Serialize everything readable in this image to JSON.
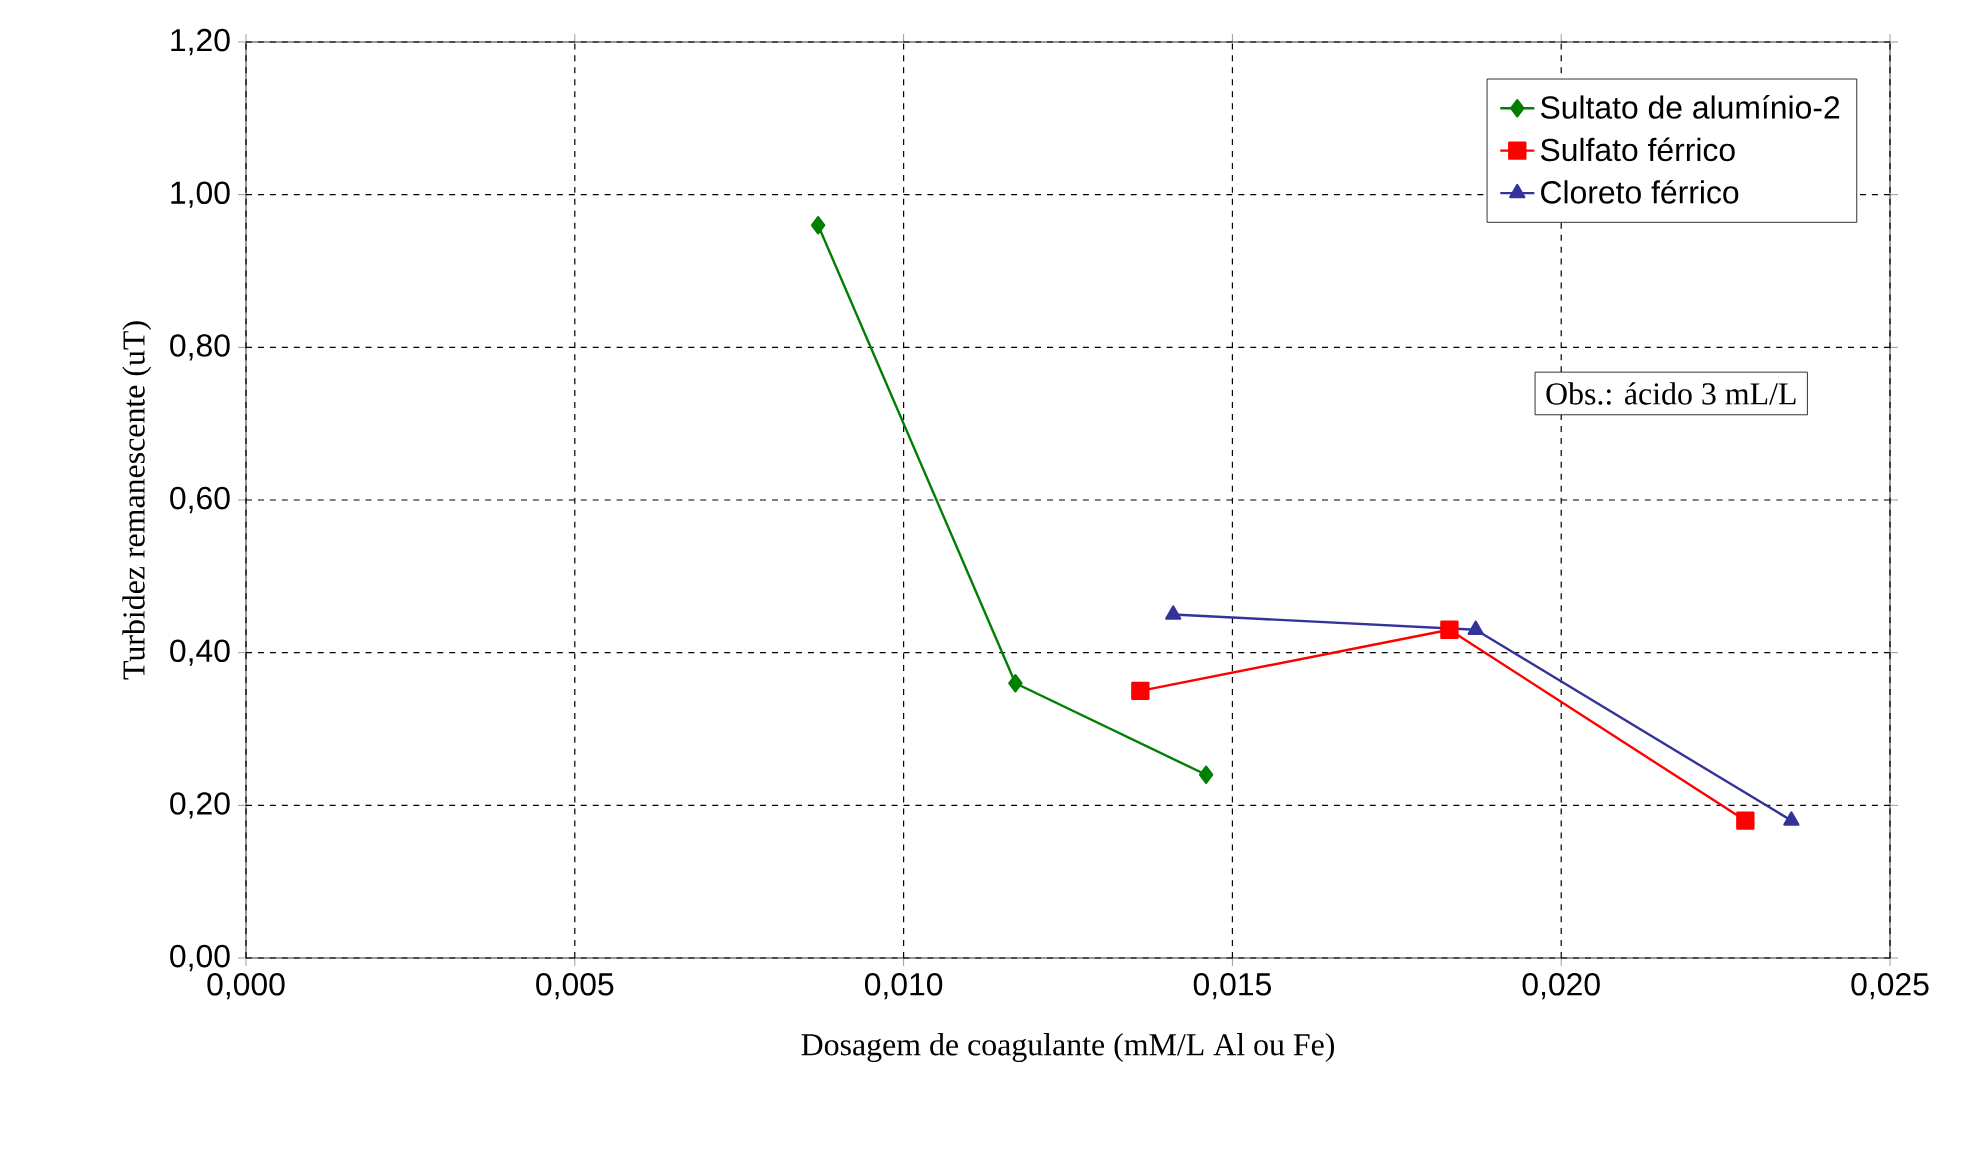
{
  "chart_data": {
    "type": "line",
    "xlabel": "Dosagem de coagulante (mM/L Al ou Fe)",
    "ylabel": "Turbidez remanescente (uT)",
    "xlim": [
      0,
      0.025
    ],
    "xticks": [
      {
        "value": 0,
        "label": "0,000"
      },
      {
        "value": 0.005,
        "label": "0,005"
      },
      {
        "value": 0.01,
        "label": "0,010"
      },
      {
        "value": 0.015,
        "label": "0,015"
      },
      {
        "value": 0.02,
        "label": "0,020"
      },
      {
        "value": 0.025,
        "label": "0,025"
      }
    ],
    "ylim": [
      0,
      1.2
    ],
    "yticks": [
      {
        "value": 0,
        "label": "0,00"
      },
      {
        "value": 0.2,
        "label": "0,20"
      },
      {
        "value": 0.4,
        "label": "0,40"
      },
      {
        "value": 0.6,
        "label": "0,60"
      },
      {
        "value": 0.8,
        "label": "0,80"
      },
      {
        "value": 1.0,
        "label": "1,00"
      },
      {
        "value": 1.2,
        "label": "1,20"
      }
    ],
    "grid": true,
    "legend": "top right",
    "series": [
      {
        "name": "Sultato de alumínio-2",
        "color": "#008000",
        "marker": "diamond",
        "x": [
          0.0087,
          0.0117,
          0.0146
        ],
        "values": [
          0.96,
          0.36,
          0.24
        ]
      },
      {
        "name": "Sulfato férrico",
        "color": "#ff0000",
        "marker": "square",
        "x": [
          0.0136,
          0.0183,
          0.0228
        ],
        "values": [
          0.35,
          0.43,
          0.18
        ]
      },
      {
        "name": "Cloreto férrico",
        "color": "#333399",
        "marker": "triangle",
        "x": [
          0.0141,
          0.0187,
          0.0235
        ],
        "values": [
          0.45,
          0.43,
          0.18
        ]
      }
    ],
    "annotations": [
      "Obs.: ácido 3 mL/L"
    ]
  }
}
